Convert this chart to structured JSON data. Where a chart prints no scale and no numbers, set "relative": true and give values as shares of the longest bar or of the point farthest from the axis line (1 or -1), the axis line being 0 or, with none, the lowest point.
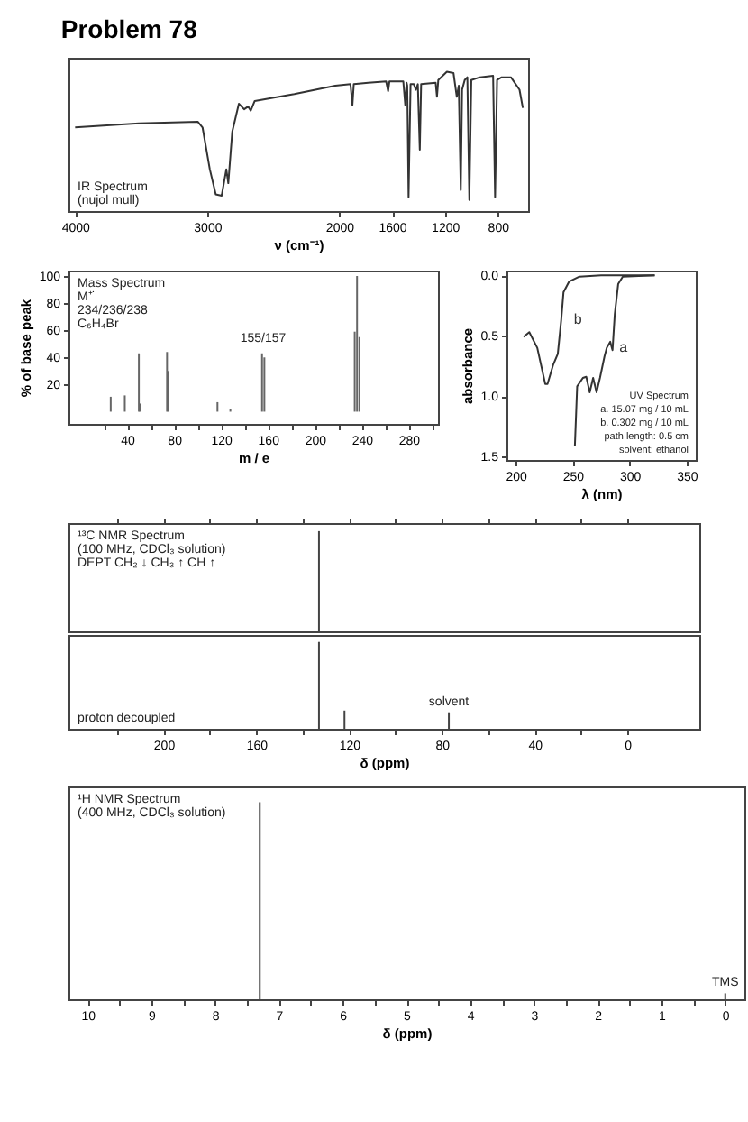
{
  "chart_data": [
    {
      "type": "line",
      "title": "Problem 78",
      "xlabel": "ν (cm⁻¹)",
      "annotations": [
        "IR Spectrum",
        "(nujol mull)"
      ],
      "relative": true,
      "color": "#333333",
      "xlim": [
        4050,
        570
      ],
      "xticks": [
        4000,
        3000,
        2000,
        1600,
        1200,
        800
      ],
      "x": [
        4000,
        3517,
        3070,
        3035,
        2980,
        2935,
        2890,
        2855,
        2840,
        2810,
        2760,
        2720,
        2690,
        2670,
        2640,
        2340,
        2030,
        1915,
        1900,
        1890,
        1780,
        1645,
        1630,
        1620,
        1515,
        1500,
        1490,
        1485,
        1475,
        1460,
        1435,
        1420,
        1405,
        1390,
        1380,
        1270,
        1260,
        1250,
        1185,
        1135,
        1110,
        1095,
        1080,
        1070,
        1050,
        1030,
        1015,
        1000,
        935,
        835,
        820,
        805,
        770,
        700,
        635,
        610
      ],
      "values": [
        0.6,
        0.63,
        0.64,
        0.6,
        0.3,
        0.12,
        0.11,
        0.3,
        0.2,
        0.57,
        0.77,
        0.73,
        0.75,
        0.72,
        0.79,
        0.84,
        0.9,
        0.91,
        0.76,
        0.91,
        0.92,
        0.93,
        0.86,
        0.93,
        0.93,
        0.76,
        0.92,
        0.9,
        0.1,
        0.91,
        0.91,
        0.87,
        0.91,
        0.44,
        0.91,
        0.92,
        0.82,
        0.94,
        1.0,
        0.99,
        0.82,
        0.9,
        0.15,
        0.87,
        0.94,
        0.96,
        0.08,
        0.94,
        0.96,
        0.97,
        0.1,
        0.94,
        0.96,
        0.96,
        0.87,
        0.74
      ]
    },
    {
      "type": "bar",
      "xlabel": "m / e",
      "ylabel": "% of base peak",
      "annotations": [
        "Mass Spectrum",
        "M⁺˙",
        "234/236/238",
        "C₆H₄Br",
        {
          "text": "155/157",
          "x": 156,
          "y": 46
        }
      ],
      "color": "#666666",
      "xlim": [
        -10,
        305
      ],
      "ylim": [
        -9,
        104
      ],
      "xticks": [
        {
          "value": 20,
          "label": null
        },
        40,
        {
          "value": 60,
          "label": null
        },
        80,
        {
          "value": 100,
          "label": null
        },
        120,
        {
          "value": 140,
          "label": null
        },
        160,
        {
          "value": 180,
          "label": null
        },
        200,
        {
          "value": 220,
          "label": null
        },
        240,
        {
          "value": 260,
          "label": null
        },
        280,
        {
          "value": 300,
          "label": null
        }
      ],
      "yticks": [
        20,
        40,
        60,
        80,
        100
      ],
      "x": [
        26,
        38,
        50,
        51,
        74,
        75,
        117,
        128,
        155,
        157,
        234,
        236,
        238
      ],
      "values": [
        11,
        12,
        43,
        6,
        44,
        30,
        7,
        2,
        43,
        40,
        59,
        100,
        55
      ]
    },
    {
      "type": "line",
      "xlabel": "λ (nm)",
      "ylabel": "absorbance",
      "annotations": [
        "UV Spectrum",
        "a. 15.07 mg / 10 mL",
        "b. 0.302 mg / 10 mL",
        "path length: 0.5 cm",
        "solvent: ethanol"
      ],
      "xlim": [
        192,
        358
      ],
      "ylim": [
        1.53,
        -0.04
      ],
      "xticks": [
        200,
        250,
        300,
        350
      ],
      "yticks": [
        {
          "value": 0,
          "label": "0.0"
        },
        {
          "value": 0.5,
          "label": "0.5"
        },
        {
          "value": 1,
          "label": "1.0"
        },
        {
          "value": 1.5,
          "label": "1.5"
        }
      ],
      "series": [
        {
          "name": "b",
          "color": "#333333",
          "x": [
            207,
            212,
            219,
            226,
            228,
            233,
            237,
            240,
            242,
            247,
            256,
            275,
            322
          ],
          "values": [
            0.51,
            0.47,
            0.6,
            0.9,
            0.9,
            0.74,
            0.65,
            0.37,
            0.14,
            0.05,
            0.01,
            0,
            0
          ]
        },
        {
          "name": "a",
          "color": "#333333",
          "x": [
            252,
            254,
            259,
            262,
            265,
            268,
            271,
            274,
            278,
            280,
            283,
            285,
            287,
            290,
            294,
            322
          ],
          "values": [
            1.41,
            0.92,
            0.85,
            0.84,
            0.97,
            0.85,
            0.97,
            0.85,
            0.67,
            0.6,
            0.55,
            0.62,
            0.32,
            0.07,
            0.01,
            0
          ]
        }
      ]
    },
    {
      "type": "bar",
      "annotations": [
        "¹³C NMR Spectrum",
        "(100 MHz, CDCl₃ solution)",
        "DEPT  CH₂ ↓ CH₃ ↑ CH ↑"
      ],
      "relative": true,
      "tick_labels": false,
      "color": "#444444",
      "xlim": [
        241,
        -31
      ],
      "xticks": [
        {
          "value": 220,
          "label": null
        },
        200,
        {
          "value": 180,
          "label": null
        },
        160,
        {
          "value": 140,
          "label": null
        },
        120,
        {
          "value": 100,
          "label": null
        },
        80,
        {
          "value": 60,
          "label": null
        },
        40,
        {
          "value": 20,
          "label": null
        },
        0
      ],
      "x": [
        133
      ],
      "values": [
        1
      ]
    },
    {
      "type": "bar",
      "xlabel": "δ (ppm)",
      "annotations": [
        "proton decoupled",
        {
          "text": "solvent",
          "x": 77,
          "y": 0.19
        }
      ],
      "relative": true,
      "color": "#444444",
      "xlim": [
        241,
        -31
      ],
      "xticks": [
        {
          "value": 220,
          "label": null
        },
        200,
        {
          "value": 180,
          "label": null
        },
        160,
        {
          "value": 140,
          "label": null
        },
        120,
        {
          "value": 100,
          "label": null
        },
        80,
        {
          "value": 60,
          "label": null
        },
        40,
        {
          "value": 20,
          "label": null
        },
        0
      ],
      "x": [
        133,
        122,
        77
      ],
      "values": [
        1,
        0.21,
        0.19
      ]
    },
    {
      "type": "bar",
      "xlabel": "δ (ppm)",
      "annotations": [
        "¹H NMR Spectrum",
        "(400 MHz, CDCl₃ solution)",
        {
          "text": "TMS",
          "x": 0,
          "y": 0.03
        }
      ],
      "relative": true,
      "color": "#444444",
      "xlim": [
        10.3,
        -0.3
      ],
      "xticks": [
        10,
        {
          "value": 9.5,
          "label": null
        },
        9,
        {
          "value": 8.5,
          "label": null
        },
        8,
        {
          "value": 7.5,
          "label": null
        },
        7,
        {
          "value": 6.5,
          "label": null
        },
        6,
        {
          "value": 5.5,
          "label": null
        },
        5,
        {
          "value": 4.5,
          "label": null
        },
        4,
        {
          "value": 3.5,
          "label": null
        },
        3,
        {
          "value": 2.5,
          "label": null
        },
        2,
        {
          "value": 1.5,
          "label": null
        },
        1,
        {
          "value": 0.5,
          "label": null
        },
        0
      ],
      "x": [
        7.3,
        0
      ],
      "values": [
        1,
        0.03
      ]
    }
  ]
}
